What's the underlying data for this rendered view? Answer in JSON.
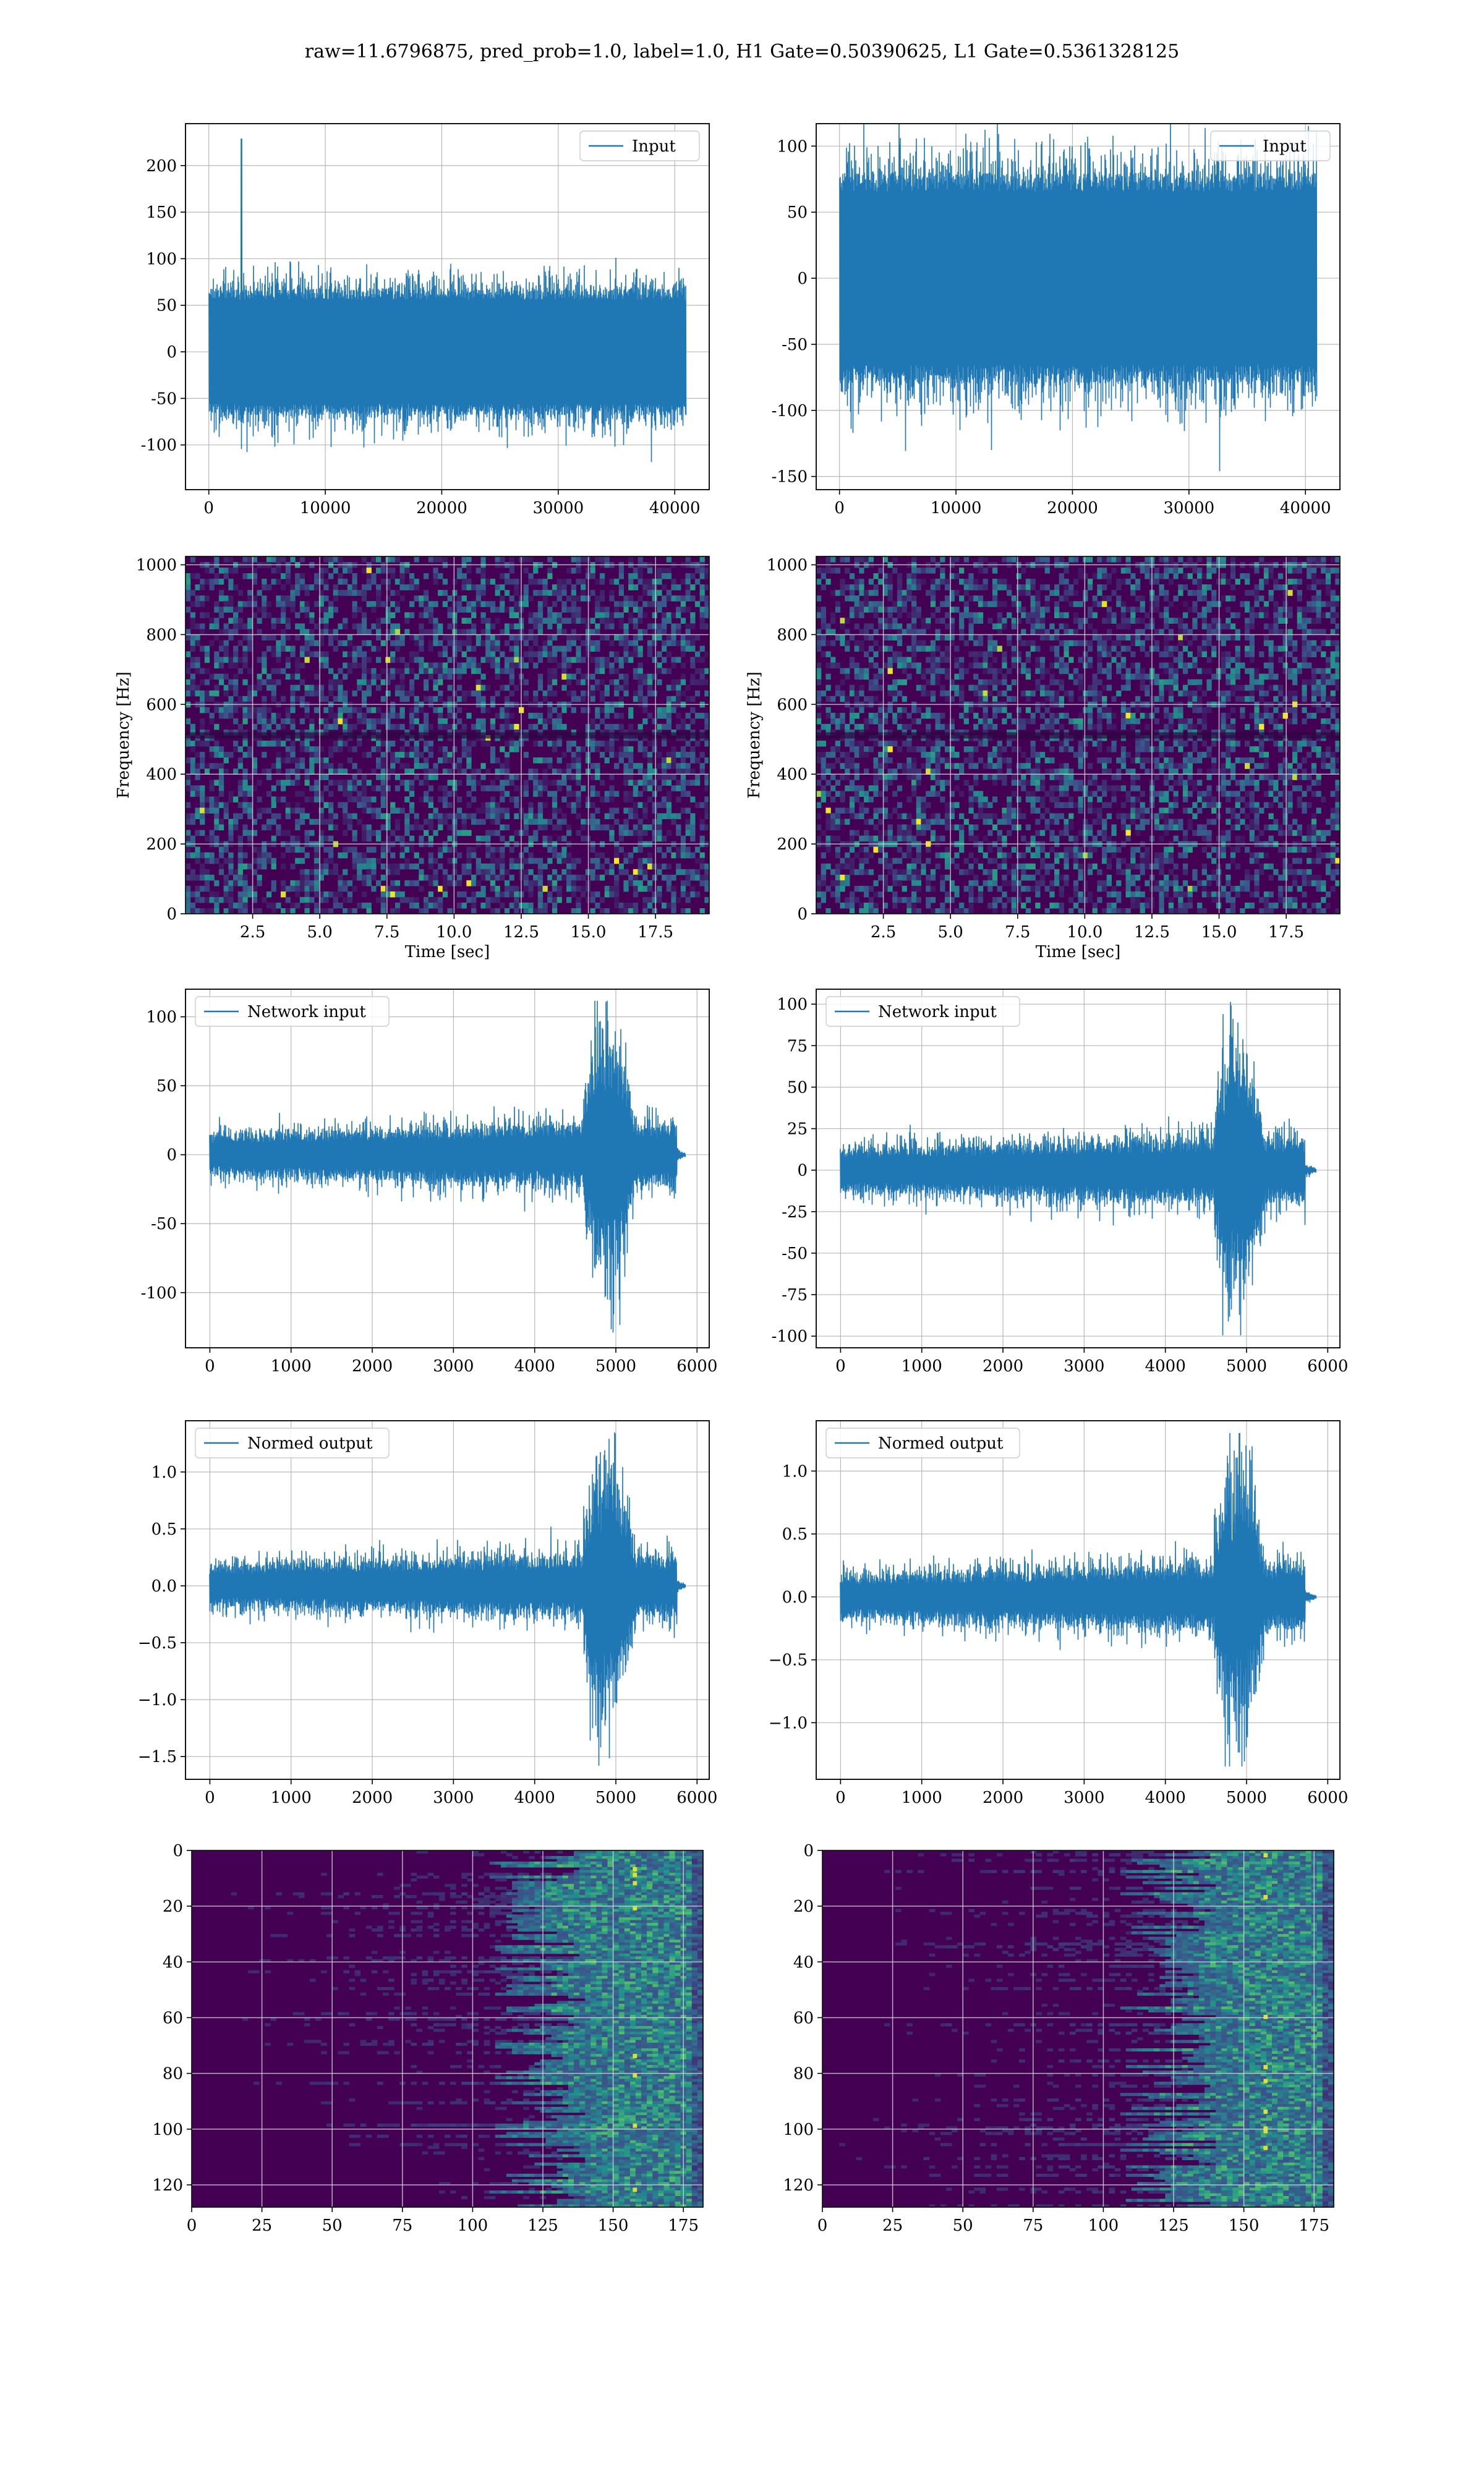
{
  "figure": {
    "title": "raw=11.6796875, pred_prob=1.0, label=1.0, H1 Gate=0.50390625, L1 Gate=0.5361328125",
    "colors": {
      "line": "#1f77b4",
      "grid": "#b0b0b0",
      "heat_low": "#440154",
      "heat_mid": "#21918c",
      "heat_high": "#fde725"
    }
  },
  "chart_data": [
    {
      "id": "h1-input",
      "type": "line",
      "legend": "Input",
      "legend_pos": "upper right",
      "xlim": [
        -2000,
        42960
      ],
      "ylim": [
        -148,
        245
      ],
      "xticks": [
        0,
        10000,
        20000,
        30000,
        40000
      ],
      "yticks": [
        -100,
        -50,
        0,
        50,
        100,
        150,
        200
      ],
      "grid": true,
      "n": 40960,
      "signal": {
        "kind": "noise",
        "amplitude": 68,
        "spike": {
          "x": 2800,
          "y": 229
        }
      }
    },
    {
      "id": "l1-input",
      "type": "line",
      "legend": "Input",
      "legend_pos": "upper right",
      "xlim": [
        -2000,
        42960
      ],
      "ylim": [
        -160,
        117
      ],
      "xticks": [
        0,
        10000,
        20000,
        30000,
        40000
      ],
      "yticks": [
        -150,
        -100,
        -50,
        0,
        50,
        100
      ],
      "grid": true,
      "n": 40960,
      "signal": {
        "kind": "noise",
        "amplitude": 80,
        "spike": {
          "x": 32600,
          "y": -146
        }
      }
    },
    {
      "id": "h1-spectrogram",
      "type": "heatmap",
      "xlabel": "Time [sec]",
      "ylabel": "Frequency [Hz]",
      "xlim": [
        0,
        19.5
      ],
      "ylim": [
        0,
        1024
      ],
      "xticks": [
        2.5,
        5.0,
        7.5,
        10.0,
        12.5,
        15.0,
        17.5
      ],
      "yticks": [
        0,
        200,
        400,
        600,
        800,
        1000
      ],
      "grid": true,
      "rows": 64,
      "cols": 110
    },
    {
      "id": "l1-spectrogram",
      "type": "heatmap",
      "xlabel": "Time [sec]",
      "ylabel": "Frequency [Hz]",
      "xlim": [
        0,
        19.5
      ],
      "ylim": [
        0,
        1024
      ],
      "xticks": [
        2.5,
        5.0,
        7.5,
        10.0,
        12.5,
        15.0,
        17.5
      ],
      "yticks": [
        0,
        200,
        400,
        600,
        800,
        1000
      ],
      "grid": true,
      "rows": 64,
      "cols": 110
    },
    {
      "id": "h1-network-input",
      "type": "line",
      "legend": "Network input",
      "legend_pos": "upper left",
      "xlim": [
        -300,
        6150
      ],
      "ylim": [
        -140,
        120
      ],
      "xticks": [
        0,
        1000,
        2000,
        3000,
        4000,
        5000,
        6000
      ],
      "yticks": [
        -100,
        -50,
        0,
        50,
        100
      ],
      "grid": true,
      "n": 5800,
      "signal": {
        "kind": "chirp",
        "base": 15,
        "burst_start": 4600,
        "burst_end": 5750,
        "burst_amp": 80,
        "tail_end": 5850
      }
    },
    {
      "id": "l1-network-input",
      "type": "line",
      "legend": "Network input",
      "legend_pos": "upper left",
      "xlim": [
        -300,
        6150
      ],
      "ylim": [
        -107,
        109
      ],
      "xticks": [
        0,
        1000,
        2000,
        3000,
        4000,
        5000,
        6000
      ],
      "yticks": [
        -100,
        -75,
        -50,
        -25,
        0,
        25,
        50,
        75,
        100
      ],
      "grid": true,
      "n": 5800,
      "signal": {
        "kind": "chirp",
        "base": 13,
        "burst_start": 4600,
        "burst_end": 5720,
        "burst_amp": 70,
        "tail_end": 5850
      }
    },
    {
      "id": "h1-normed-output",
      "type": "line",
      "legend": "Normed output",
      "legend_pos": "upper left",
      "xlim": [
        -300,
        6150
      ],
      "ylim": [
        -1.7,
        1.45
      ],
      "xticks": [
        0,
        1000,
        2000,
        3000,
        4000,
        5000,
        6000
      ],
      "yticks": [
        -1.5,
        -1.0,
        -0.5,
        0.0,
        0.5,
        1.0
      ],
      "grid": true,
      "n": 5800,
      "signal": {
        "kind": "chirp",
        "base": 0.18,
        "burst_start": 4600,
        "burst_end": 5750,
        "burst_amp": 1.0,
        "tail_end": 5850
      }
    },
    {
      "id": "l1-normed-output",
      "type": "line",
      "legend": "Normed output",
      "legend_pos": "upper left",
      "xlim": [
        -300,
        6150
      ],
      "ylim": [
        -1.45,
        1.4
      ],
      "xticks": [
        0,
        1000,
        2000,
        3000,
        4000,
        5000,
        6000
      ],
      "yticks": [
        -1.0,
        -0.5,
        0.0,
        0.5,
        1.0
      ],
      "grid": true,
      "n": 5800,
      "signal": {
        "kind": "chirp",
        "base": 0.17,
        "burst_start": 4600,
        "burst_end": 5720,
        "burst_amp": 0.95,
        "tail_end": 5850
      }
    },
    {
      "id": "h1-gate-map",
      "type": "heatmap",
      "xlim": [
        0,
        182
      ],
      "ylim": [
        128,
        0
      ],
      "xticks": [
        0,
        25,
        50,
        75,
        100,
        125,
        150,
        175
      ],
      "yticks": [
        0,
        20,
        40,
        60,
        80,
        100,
        120
      ],
      "grid": true,
      "rows": 128,
      "cols": 182
    },
    {
      "id": "l1-gate-map",
      "type": "heatmap",
      "xlim": [
        0,
        182
      ],
      "ylim": [
        128,
        0
      ],
      "xticks": [
        0,
        25,
        50,
        75,
        100,
        125,
        150,
        175
      ],
      "yticks": [
        0,
        20,
        40,
        60,
        80,
        100,
        120
      ],
      "grid": true,
      "rows": 128,
      "cols": 182
    }
  ]
}
